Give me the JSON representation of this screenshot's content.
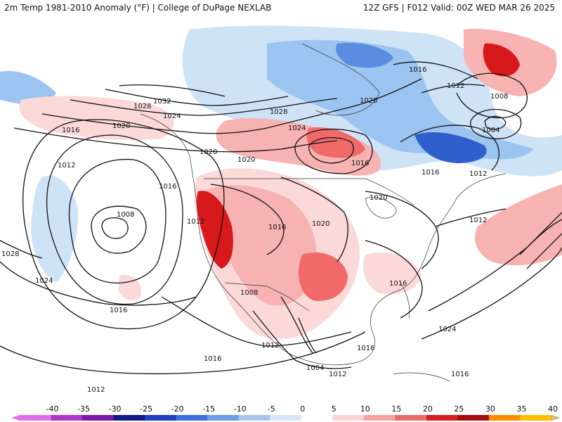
{
  "header": {
    "left_title": "2m Temp 1981-2010 Anomaly (°F) | College of DuPage NEXLAB",
    "right_title": "12Z GFS | F012 Valid: 00Z WED MAR 26 2025"
  },
  "map": {
    "isobars": [
      {
        "label": "1032"
      },
      {
        "label": "1028"
      },
      {
        "label": "1028"
      },
      {
        "label": "1024"
      },
      {
        "label": "1024"
      },
      {
        "label": "1024"
      },
      {
        "label": "1020"
      },
      {
        "label": "1020"
      },
      {
        "label": "1020"
      },
      {
        "label": "1020"
      },
      {
        "label": "1020"
      },
      {
        "label": "1020"
      },
      {
        "label": "1016"
      },
      {
        "label": "1016"
      },
      {
        "label": "1016"
      },
      {
        "label": "1016"
      },
      {
        "label": "1016"
      },
      {
        "label": "1016"
      },
      {
        "label": "1016"
      },
      {
        "label": "1016"
      },
      {
        "label": "1016"
      },
      {
        "label": "1016"
      },
      {
        "label": "1012"
      },
      {
        "label": "1012"
      },
      {
        "label": "1012"
      },
      {
        "label": "1012"
      },
      {
        "label": "1012"
      },
      {
        "label": "1012"
      },
      {
        "label": "1012"
      },
      {
        "label": "1012"
      },
      {
        "label": "1012"
      },
      {
        "label": "1008"
      },
      {
        "label": "1008"
      },
      {
        "label": "1008"
      },
      {
        "label": "1004"
      },
      {
        "label": "1004"
      },
      {
        "label": "1028"
      },
      {
        "label": "1024"
      },
      {
        "label": "1016"
      }
    ],
    "colors": {
      "warm_strong": "#d7191c",
      "warm_mid": "#f06a6a",
      "warm_light": "#f7b2b2",
      "warm_pale": "#fbd9d9",
      "cold_pale": "#cfe3f7",
      "cold_light": "#9cc4f0",
      "cold_mid": "#5a8de0",
      "cold_strong": "#2f5fcc"
    }
  },
  "legend": {
    "labels": [
      "-40",
      "-35",
      "-30",
      "-25",
      "-20",
      "-15",
      "-10",
      "-5",
      "0",
      "5",
      "10",
      "15",
      "20",
      "25",
      "30",
      "35",
      "40"
    ],
    "colors": [
      "#e070e8",
      "#b036c8",
      "#7a1aa8",
      "#141a8a",
      "#1e3fbf",
      "#3d6fe0",
      "#6f9de8",
      "#a6c6ef",
      "#d7e6f7",
      "#ffffff",
      "#fbd3d3",
      "#f4a3a3",
      "#ea6a6a",
      "#d81e1e",
      "#a60d0d",
      "#ff8c00",
      "#ffc000",
      "#d8c070"
    ]
  }
}
